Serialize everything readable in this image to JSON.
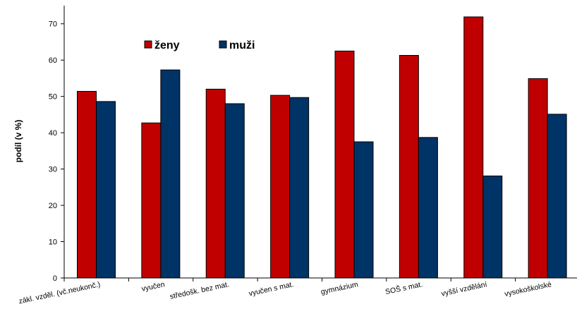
{
  "chart_data": {
    "type": "bar",
    "ylabel": "podíl (v %)",
    "ylim": [
      0,
      75
    ],
    "yticks": [
      0,
      10,
      20,
      30,
      40,
      50,
      60,
      70
    ],
    "grid": false,
    "legend_position": "top-left",
    "categories": [
      "zákl. vzděl. (vč.neukonč.)",
      "vyučen",
      "středošk. bez mat.",
      "vyučen s mat.",
      "gymnázium",
      "SOŠ s mat.",
      "vyšší vzdělání",
      "vysokoškolské"
    ],
    "series": [
      {
        "name": "ženy",
        "color": "#C00000",
        "values": [
          51.4,
          42.7,
          52.0,
          50.3,
          62.5,
          61.3,
          71.9,
          54.9
        ]
      },
      {
        "name": "muži",
        "color": "#003366",
        "values": [
          48.6,
          57.3,
          48.0,
          49.7,
          37.5,
          38.7,
          28.1,
          45.1
        ]
      }
    ]
  }
}
